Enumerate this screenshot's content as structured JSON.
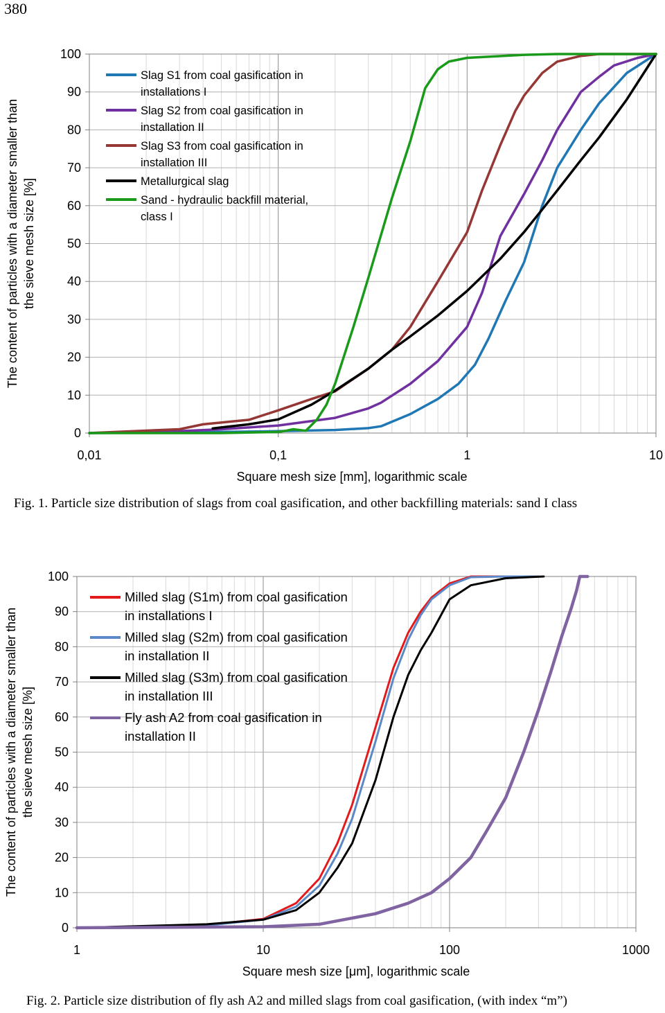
{
  "page": {
    "number": "380"
  },
  "captions": {
    "fig1": "Fig. 1. Particle size distribution of slags from coal gasification, and other backfilling materials: sand I class",
    "fig2": "Fig. 2. Particle size distribution of fly ash A2 and milled slags from coal gasification, (with index “m”)"
  },
  "chart_data": [
    {
      "type": "line",
      "xscale": "log",
      "xlabel": "Square mesh size [mm], logarithmic scale",
      "ylabel": "The content of particles with a diameter smaller than the sieve mesh size [%]",
      "xlim": [
        0.01,
        10
      ],
      "ylim": [
        0,
        100
      ],
      "xticks": [
        0.01,
        0.1,
        1,
        10
      ],
      "xtick_labels": [
        "0,01",
        "0,1",
        "1",
        "10"
      ],
      "yticks": [
        0,
        10,
        20,
        30,
        40,
        50,
        60,
        70,
        80,
        90,
        100
      ],
      "ytick_labels": [
        "0",
        "10",
        "20",
        "30",
        "40",
        "50",
        "60",
        "70",
        "80",
        "90",
        "100"
      ],
      "grid": true,
      "legend_position": "top-left",
      "series": [
        {
          "name": "Slag S1 from coal gasification in installations I",
          "color": "#1f77b4",
          "x": [
            0.01,
            0.05,
            0.1,
            0.2,
            0.3,
            0.35,
            0.5,
            0.7,
            0.9,
            1.1,
            1.3,
            1.6,
            2.0,
            2.5,
            3.0,
            4.0,
            5.0,
            7.0,
            10.0
          ],
          "y": [
            0,
            0.3,
            0.5,
            0.8,
            1.3,
            1.8,
            5,
            9,
            13,
            18,
            25,
            35,
            45,
            60,
            70,
            80,
            87,
            95,
            100
          ]
        },
        {
          "name": "Slag S2 from coal gasification in installation II",
          "color": "#7030a0",
          "x": [
            0.01,
            0.03,
            0.05,
            0.1,
            0.2,
            0.3,
            0.35,
            0.5,
            0.7,
            1.0,
            1.2,
            1.5,
            2.0,
            2.5,
            3.0,
            4.0,
            5.0,
            6.0,
            8.0,
            10.0
          ],
          "y": [
            0,
            0.5,
            1,
            2,
            4,
            6.5,
            8,
            13,
            19,
            28,
            37,
            52,
            63,
            72,
            80,
            90,
            94,
            97,
            99,
            100
          ]
        },
        {
          "name": "Slag S3 from coal gasification in installation III",
          "color": "#953735",
          "x": [
            0.01,
            0.03,
            0.04,
            0.07,
            0.1,
            0.15,
            0.2,
            0.3,
            0.4,
            0.5,
            0.7,
            1.0,
            1.2,
            1.5,
            1.8,
            2.0,
            2.5,
            3.0,
            4.0,
            5.0,
            7.0,
            10.0
          ],
          "y": [
            0,
            1,
            2.3,
            3.5,
            6,
            9,
            11,
            17,
            22,
            28,
            40,
            53,
            64,
            76,
            85,
            89,
            95,
            98,
            99.5,
            100,
            100,
            100
          ]
        },
        {
          "name": "Metallurgical slag",
          "color": "#000000",
          "x": [
            0.045,
            0.05,
            0.07,
            0.1,
            0.15,
            0.2,
            0.3,
            0.4,
            0.5,
            0.7,
            1.0,
            1.5,
            2.0,
            2.5,
            3.0,
            4.0,
            5.0,
            7.0,
            10.0
          ],
          "y": [
            1.2,
            1.5,
            2.3,
            3.6,
            7.5,
            11.2,
            17,
            22,
            25.5,
            31,
            37.5,
            46,
            53,
            59,
            64,
            72,
            78,
            88,
            100
          ]
        },
        {
          "name": "Sand - hydraulic backfill material, class I",
          "color": "#1a9a1a",
          "x": [
            0.01,
            0.05,
            0.1,
            0.11,
            0.12,
            0.14,
            0.16,
            0.18,
            0.2,
            0.25,
            0.3,
            0.4,
            0.5,
            0.6,
            0.7,
            0.8,
            1.0,
            2.0,
            3.0,
            5.0,
            10.0
          ],
          "y": [
            0,
            0,
            0.3,
            0.6,
            1.0,
            0.6,
            3.5,
            7.5,
            13,
            28,
            41,
            62,
            77,
            91,
            96,
            98,
            99,
            99.8,
            100,
            100,
            100
          ]
        }
      ]
    },
    {
      "type": "line",
      "xscale": "log",
      "xlabel": "Square mesh size [μm], logarithmic scale",
      "ylabel": "The content of particles with a diameter smaller than the sieve mesh size [%]",
      "xlim": [
        1,
        1000
      ],
      "ylim": [
        0,
        100
      ],
      "xticks": [
        1,
        10,
        100,
        1000
      ],
      "xtick_labels": [
        "1",
        "10",
        "100",
        "1000"
      ],
      "yticks": [
        0,
        10,
        20,
        30,
        40,
        50,
        60,
        70,
        80,
        90,
        100
      ],
      "ytick_labels": [
        "0",
        "10",
        "20",
        "30",
        "40",
        "50",
        "60",
        "70",
        "80",
        "90",
        "100"
      ],
      "grid": true,
      "legend_position": "top-left",
      "series": [
        {
          "name": "Milled slag (S1m) from coal gasification in installations I",
          "color": "#e31a1c",
          "x": [
            1,
            5,
            10,
            15,
            20,
            25,
            30,
            40,
            50,
            60,
            70,
            80,
            100,
            130,
            200,
            300
          ],
          "y": [
            0,
            0.8,
            2.5,
            7,
            14,
            24,
            35,
            57,
            74,
            84,
            90,
            94,
            98,
            100,
            100,
            100
          ]
        },
        {
          "name": "Milled slag (S2m) from coal gasification in installation II",
          "color": "#5b88c6",
          "x": [
            1,
            5,
            10,
            15,
            20,
            25,
            30,
            40,
            50,
            60,
            70,
            80,
            100,
            130,
            200,
            300
          ],
          "y": [
            0,
            0.7,
            2.3,
            6,
            12,
            21,
            31,
            53,
            71,
            82,
            89,
            93.5,
            97.5,
            99.8,
            100,
            100
          ]
        },
        {
          "name": "Milled slag (S3m) from coal gasification in installation III",
          "color": "#000000",
          "x": [
            1,
            5,
            10,
            15,
            20,
            25,
            30,
            40,
            50,
            60,
            70,
            80,
            100,
            130,
            200,
            320
          ],
          "y": [
            0,
            1,
            2.3,
            5,
            10,
            17,
            24,
            42,
            60,
            72,
            79,
            84,
            93.5,
            97.5,
            99.5,
            100
          ]
        },
        {
          "name": "Fly ash A2 from coal gasification in installation II",
          "color": "#8064a2",
          "x": [
            1,
            10,
            20,
            40,
            60,
            80,
            100,
            130,
            160,
            200,
            250,
            300,
            350,
            400,
            450,
            480,
            500,
            550
          ],
          "y": [
            0,
            0.3,
            1,
            4,
            7,
            10,
            14,
            20,
            28,
            37,
            50,
            62,
            73,
            83,
            91,
            96,
            100,
            100
          ]
        }
      ]
    }
  ]
}
